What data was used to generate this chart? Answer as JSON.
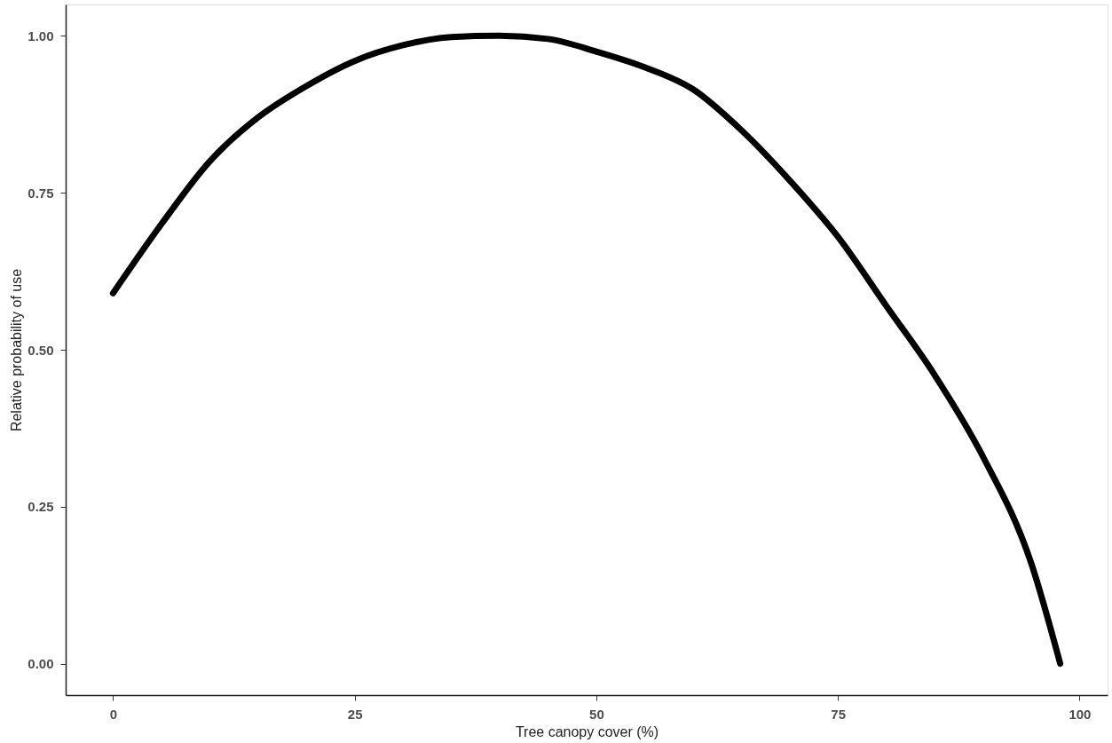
{
  "chart_data": {
    "type": "line",
    "xlabel": "Tree canopy cover (%)",
    "ylabel": "Relative probability of use",
    "x": [
      0,
      5,
      10,
      15,
      20,
      25,
      30,
      35,
      40,
      45,
      50,
      55,
      60,
      65,
      70,
      75,
      80,
      85,
      90,
      95,
      98
    ],
    "series": [
      {
        "color": "#000000",
        "values": [
          0.59,
          0.7,
          0.8,
          0.87,
          0.92,
          0.96,
          0.985,
          0.998,
          1.0,
          0.995,
          0.975,
          0.95,
          0.915,
          0.85,
          0.77,
          0.68,
          0.57,
          0.46,
          0.33,
          0.16,
          0.0
        ]
      }
    ],
    "xlim": [
      -4.9,
      102.9
    ],
    "ylim": [
      -0.05,
      1.05
    ],
    "xticks": [
      0,
      25,
      50,
      75,
      100
    ],
    "yticks": [
      {
        "value": 0,
        "label": "0.00"
      },
      {
        "value": 0.25,
        "label": "0.25"
      },
      {
        "value": 0.5,
        "label": "0.50"
      },
      {
        "value": 0.75,
        "label": "0.75"
      },
      {
        "value": 1,
        "label": "1.00"
      }
    ],
    "grid": false,
    "legend": false,
    "marker": "none",
    "line_style": "solid"
  }
}
